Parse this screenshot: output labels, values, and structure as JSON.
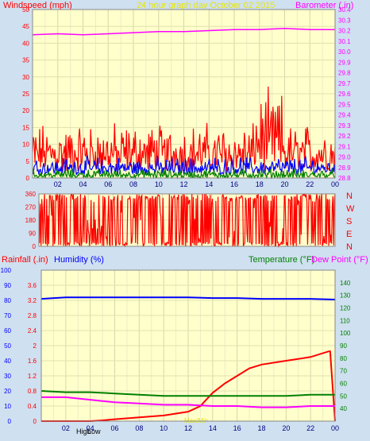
{
  "header": {
    "left_label": "Windspeed (mph)",
    "center_label": "24 hour graph day   October 02 2015",
    "right_label": "Barometer (.in)"
  },
  "panel3": {
    "rainfall_label": "Rainfall (.in)",
    "humidity_label": "Humidity (%)",
    "temperature_label": "Temperature (°F)",
    "dewpoint_label": "Dew Point (°F)",
    "footer_labels": [
      "High",
      "Low",
      "Max/Min"
    ]
  },
  "direction_labels": [
    "N",
    "W",
    "S",
    "E",
    "N"
  ],
  "x_ticks": [
    "02",
    "04",
    "06",
    "08",
    "10",
    "12",
    "14",
    "16",
    "18",
    "20",
    "22",
    "00"
  ],
  "colors": {
    "plot_bg": "#ffffcc",
    "frame_bg": "#cfe0f0",
    "red": "#ff0000",
    "blue": "#0000ff",
    "green": "#008000",
    "magenta": "#ff00ff",
    "yellow_label": "#e6e600",
    "dark_green_label": "#008000"
  },
  "chart_data": [
    {
      "type": "line",
      "series": [
        {
          "name": "Windspeed",
          "color": "#ff0000",
          "values_summary": {
            "min": 0,
            "typical_high": 16,
            "peak": 26,
            "peak_hour": 18.8
          }
        },
        {
          "name": "Gust band",
          "color": "#0000ff",
          "values_summary": {
            "min": 0,
            "typical_high": 6,
            "peak": 11
          }
        },
        {
          "name": "Average",
          "color": "#008000",
          "values_summary": {
            "min": 0,
            "typical_high": 3,
            "peak": 6
          }
        },
        {
          "name": "Barometer",
          "color": "#ff00ff",
          "x": [
            0,
            2,
            4,
            6,
            8,
            10,
            12,
            14,
            16,
            18,
            20,
            22,
            24
          ],
          "values": [
            30.16,
            30.17,
            30.16,
            30.17,
            30.18,
            30.19,
            30.19,
            30.2,
            30.21,
            30.21,
            30.22,
            30.21,
            30.21
          ]
        }
      ],
      "xlabel": "",
      "left_axis": {
        "ylim": [
          0,
          50
        ],
        "ticks": [
          0,
          5,
          10,
          15,
          20,
          25,
          30,
          35,
          40,
          45,
          50
        ]
      },
      "right_axis": {
        "ylim": [
          28.8,
          30.4
        ],
        "ticks": [
          28.8,
          28.9,
          29.0,
          29.1,
          29.2,
          29.3,
          29.4,
          29.5,
          29.6,
          29.7,
          29.8,
          29.9,
          30.0,
          30.1,
          30.2,
          30.3,
          30.4
        ]
      }
    },
    {
      "type": "line",
      "series": [
        {
          "name": "Wind direction",
          "color": "#ff0000",
          "values_summary": {
            "min": 0,
            "max": 360
          }
        }
      ],
      "left_axis": {
        "ylim": [
          0,
          360
        ],
        "ticks": [
          0,
          90,
          180,
          270,
          360
        ]
      }
    },
    {
      "type": "line",
      "series": [
        {
          "name": "Humidity",
          "color": "#0000ff",
          "x": [
            0,
            2,
            4,
            6,
            8,
            10,
            12,
            14,
            16,
            18,
            20,
            22,
            24
          ],
          "values": [
            81,
            82,
            82,
            82,
            82,
            82,
            82,
            81.5,
            81.5,
            81,
            81,
            81,
            80.5
          ]
        },
        {
          "name": "Rainfall",
          "color": "#ff0000",
          "x": [
            0,
            2,
            4,
            5,
            6,
            8,
            10,
            12,
            13,
            14,
            15,
            16,
            17,
            18,
            20,
            22,
            23.5,
            23.6,
            24
          ],
          "values": [
            0,
            0,
            0,
            0.02,
            0.05,
            0.1,
            0.15,
            0.25,
            0.4,
            0.75,
            1.0,
            1.2,
            1.4,
            1.5,
            1.6,
            1.7,
            1.85,
            1.85,
            0
          ]
        },
        {
          "name": "Temperature",
          "color": "#008000",
          "x": [
            0,
            2,
            4,
            6,
            8,
            10,
            12,
            14,
            16,
            18,
            20,
            22,
            24
          ],
          "values": [
            54,
            53,
            53,
            52,
            51,
            50,
            50,
            50,
            50,
            50,
            50,
            51,
            51
          ]
        },
        {
          "name": "Dew Point",
          "color": "#ff00ff",
          "x": [
            0,
            2,
            4,
            6,
            8,
            10,
            12,
            14,
            16,
            18,
            20,
            22,
            24
          ],
          "values": [
            49,
            49,
            47,
            45,
            44,
            43,
            43,
            42,
            42,
            41,
            41,
            42,
            42
          ]
        }
      ],
      "left_axis_outer": {
        "label": "Humidity (%)",
        "ylim": [
          0,
          100
        ],
        "ticks": [
          0,
          10,
          20,
          30,
          40,
          50,
          60,
          70,
          80,
          90,
          100
        ]
      },
      "left_axis_inner": {
        "label": "Rainfall (.in)",
        "ylim": [
          0,
          4
        ],
        "ticks": [
          0,
          0.4,
          0.8,
          1.2,
          1.6,
          2,
          2.4,
          2.8,
          3.2,
          3.6
        ]
      },
      "right_axis": {
        "label": "Temperature (°F)",
        "ylim": [
          30,
          150
        ],
        "ticks": [
          40,
          50,
          60,
          70,
          80,
          90,
          100,
          110,
          120,
          130,
          140
        ]
      }
    }
  ]
}
